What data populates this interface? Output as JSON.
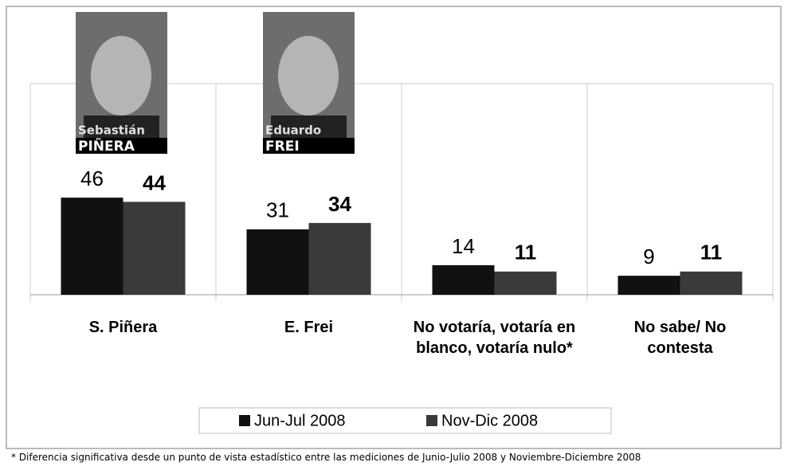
{
  "chart_data": {
    "type": "bar",
    "categories": [
      "S. Piñera",
      "E. Frei",
      "No votaría, votaría en blanco, votaría nulo*",
      "No sabe/ No contesta"
    ],
    "series": [
      {
        "name": "Jun-Jul 2008",
        "color": "#111111",
        "values": [
          46,
          31,
          14,
          9
        ]
      },
      {
        "name": "Nov-Dic 2008",
        "color": "#3a3a3a",
        "values": [
          44,
          34,
          11,
          11
        ]
      }
    ],
    "ylim": [
      0,
      100
    ],
    "annotations": [
      {
        "first": "Sebastián",
        "last": "PIÑERA"
      },
      {
        "first": "Eduardo",
        "last": "FREI"
      }
    ],
    "footnote": "* Diferencia significativa desde un punto de vista estadístico entre las mediciones de Junio-Julio 2008 y Noviembre-Diciembre 2008"
  }
}
